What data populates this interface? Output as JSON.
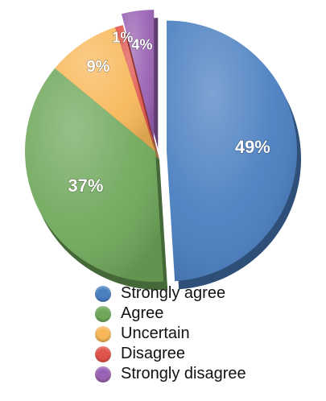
{
  "chart_data": {
    "type": "pie",
    "title": "",
    "categories": [
      "Strongly agree",
      "Agree",
      "Uncertain",
      "Disagree",
      "Strongly disagree"
    ],
    "values": [
      49,
      37,
      9,
      1,
      4
    ],
    "labels": [
      "49%",
      "37%",
      "9%",
      "1%",
      "4%"
    ],
    "colors": [
      "#4a7fc1",
      "#6fa85b",
      "#f8b85a",
      "#e0534b",
      "#9a62b4"
    ],
    "legend_position": "bottom",
    "exploded_slices": [
      "Strongly agree",
      "Strongly disagree"
    ]
  },
  "legend": {
    "items": [
      {
        "label": "Strongly agree",
        "color": "#4a7fc1"
      },
      {
        "label": "Agree",
        "color": "#6fa85b"
      },
      {
        "label": "Uncertain",
        "color": "#f8b85a"
      },
      {
        "label": "Disagree",
        "color": "#e0534b"
      },
      {
        "label": "Strongly disagree",
        "color": "#9a62b4"
      }
    ]
  }
}
